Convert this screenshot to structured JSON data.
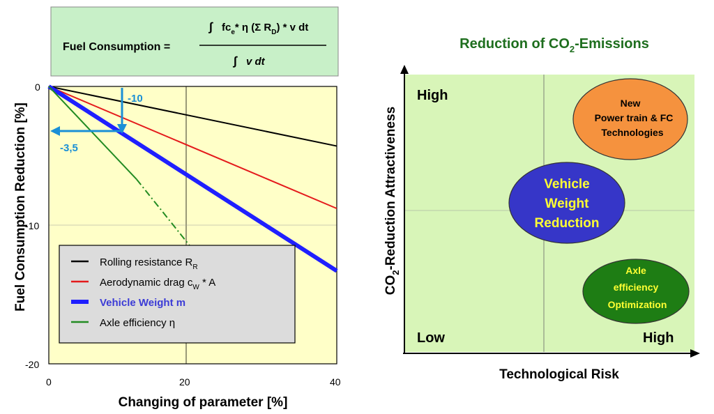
{
  "formula": {
    "label": "Fuel Consumption =",
    "numerator": "fc",
    "numerator_sub": "e",
    "numerator_rest": "* η (Σ R",
    "numerator_sub2": "D",
    "numerator_end": ") * v dt",
    "denominator": "v dt"
  },
  "chart_data": [
    {
      "type": "line",
      "ylabel": "Fuel Consumption Reduction [%]",
      "xlabel": "Changing of parameter [%]",
      "xlim": [
        0,
        40
      ],
      "ylim": [
        -20,
        0
      ],
      "x_ticks": [
        "0",
        "20",
        "40"
      ],
      "y_ticks": [
        "0",
        "-10",
        "-20"
      ],
      "grid": true,
      "legend_position": "lower-left",
      "series": [
        {
          "name": "Rolling resistance R",
          "name_sub": "R",
          "color": "#000000",
          "x": [
            0,
            40
          ],
          "y": [
            0,
            -4.3
          ]
        },
        {
          "name": "Aerodynamic drag c",
          "name_sub": "W",
          "name_end": " * A",
          "color": "#e41a1c",
          "x": [
            0,
            40
          ],
          "y": [
            0,
            -8.8
          ]
        },
        {
          "name": "Vehicle Weight  m",
          "color": "#1f1fff",
          "x": [
            0,
            40
          ],
          "y": [
            0,
            -13.3
          ]
        },
        {
          "name": "Axle efficiency   η",
          "color": "#228b22",
          "x": [
            0,
            12.2
          ],
          "y": [
            0,
            -6.7
          ],
          "dashed_x": [
            12.2,
            19.6
          ],
          "dashed_y": [
            -6.7,
            -11.5
          ]
        }
      ],
      "annotations": [
        {
          "text": "-10"
        },
        {
          "text": "-3,5"
        }
      ]
    },
    {
      "type": "bubble-matrix",
      "title": "Reduction of CO",
      "title_sub": "2",
      "title_end": "-Emissions",
      "xlabel": "Technological Risk",
      "ylabel": "CO",
      "ylabel_sub": "2",
      "ylabel_end": "-Reduction Attractiveness",
      "corner_labels": {
        "top_left": "High",
        "bottom_left": "Low",
        "bottom_right": "High"
      },
      "bubbles": [
        {
          "lines": [
            "New",
            "Power train & FC",
            "Technologies"
          ],
          "color": "#f5923e",
          "text_color": "#000000"
        },
        {
          "lines": [
            "Vehicle",
            "Weight",
            "Reduction"
          ],
          "color": "#3636c8",
          "text_color": "#ffff33"
        },
        {
          "lines": [
            "Axle",
            "efficiency",
            "Optimization"
          ],
          "color": "#1e7d14",
          "text_color": "#ffff33"
        }
      ]
    }
  ]
}
